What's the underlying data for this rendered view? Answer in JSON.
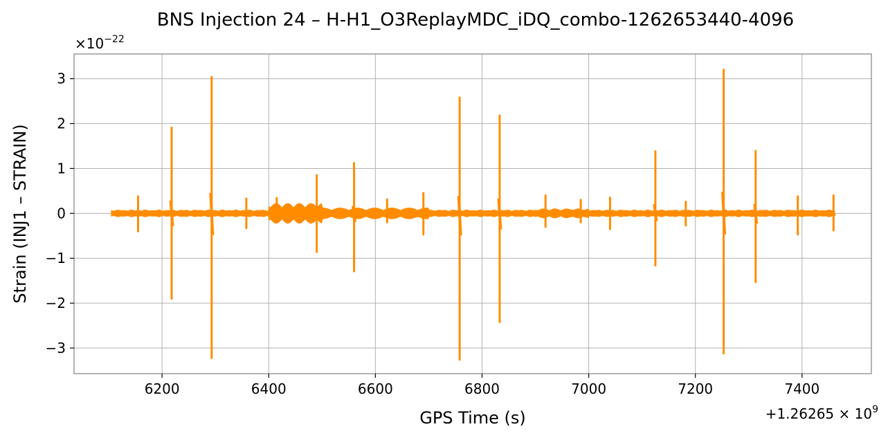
{
  "chart_data": {
    "type": "line",
    "title": "BNS Injection 24 – H-H1_O3ReplayMDC_iDQ_combo-1262653440-4096",
    "xlabel": "GPS Time (s)",
    "ylabel": "Strain (INJ1 – STRAIN)",
    "x_offset_label": "+1.26265×10^9",
    "y_scale_label": "×10^−22",
    "xlim": [
      6035,
      7530
    ],
    "ylim": [
      -3.57,
      3.55
    ],
    "x_ticks": [
      6200,
      6400,
      6600,
      6800,
      7000,
      7200,
      7400
    ],
    "x_tick_labels": [
      "6200",
      "6400",
      "6600",
      "6800",
      "7000",
      "7200",
      "7400"
    ],
    "y_ticks": [
      -3,
      -2,
      -1,
      0,
      1,
      2,
      3
    ],
    "y_tick_labels": [
      "−3",
      "−2",
      "−1",
      "0",
      "1",
      "2",
      "3"
    ],
    "grid": true,
    "series_color": "#ff8c00",
    "data_range": [
      6105,
      7462
    ],
    "baseline_amplitude": 0.07,
    "spikes": [
      {
        "x": 6155,
        "max": 0.38,
        "min": -0.4
      },
      {
        "x": 6218,
        "max": 1.91,
        "min": -1.9
      },
      {
        "x": 6293,
        "max": 3.04,
        "min": -3.22
      },
      {
        "x": 6358,
        "max": 0.33,
        "min": -0.33
      },
      {
        "x": 6415,
        "max": 0.34,
        "min": -0.12
      },
      {
        "x": 6490,
        "max": 0.85,
        "min": -0.86
      },
      {
        "x": 6560,
        "max": 1.12,
        "min": -1.29
      },
      {
        "x": 6622,
        "max": 0.31,
        "min": -0.2
      },
      {
        "x": 6690,
        "max": 0.45,
        "min": -0.47
      },
      {
        "x": 6758,
        "max": 2.58,
        "min": -3.26
      },
      {
        "x": 6833,
        "max": 2.18,
        "min": -2.42
      },
      {
        "x": 6919,
        "max": 0.4,
        "min": -0.3
      },
      {
        "x": 6985,
        "max": 0.3,
        "min": -0.2
      },
      {
        "x": 7040,
        "max": 0.35,
        "min": -0.35
      },
      {
        "x": 7125,
        "max": 1.38,
        "min": -1.16
      },
      {
        "x": 7182,
        "max": 0.26,
        "min": -0.27
      },
      {
        "x": 7253,
        "max": 3.2,
        "min": -3.12
      },
      {
        "x": 7313,
        "max": 1.39,
        "min": -1.53
      },
      {
        "x": 7392,
        "max": 0.38,
        "min": -0.47
      },
      {
        "x": 7459,
        "max": 0.4,
        "min": -0.38
      }
    ],
    "bursts": [
      {
        "x0": 6400,
        "x1": 6500,
        "amplitude": 0.22
      },
      {
        "x0": 6500,
        "x1": 6700,
        "amplitude": 0.12
      },
      {
        "x0": 6900,
        "x1": 7000,
        "amplitude": 0.1
      }
    ]
  }
}
